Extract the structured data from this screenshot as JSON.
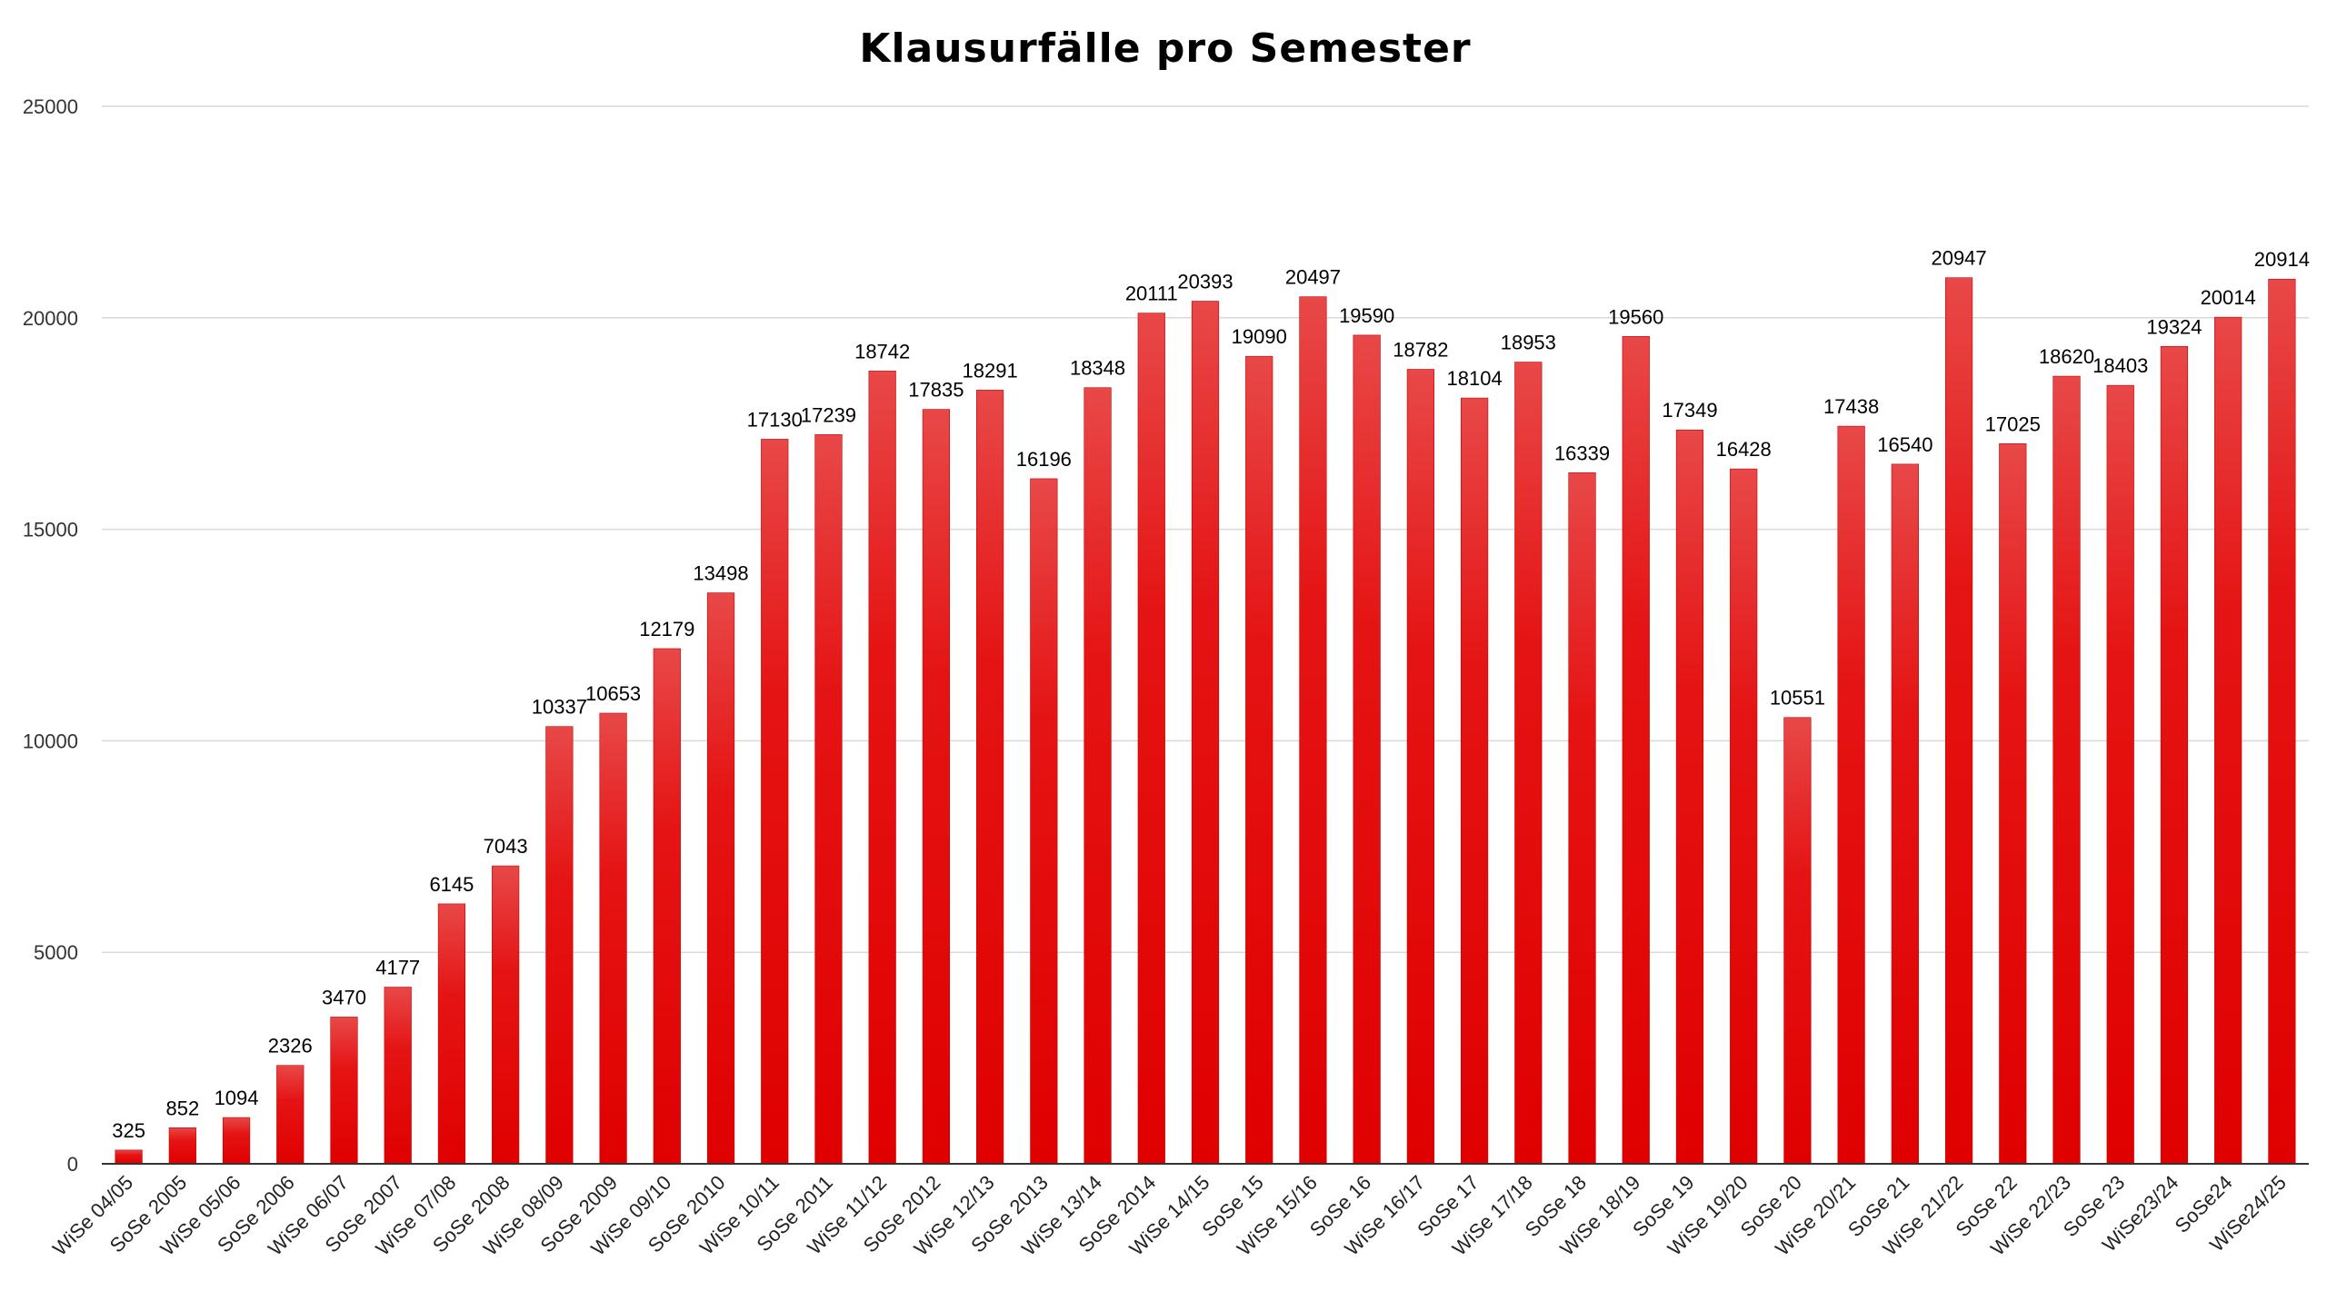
{
  "chart_data": {
    "type": "bar",
    "title": "Klausurfälle pro Semester",
    "xlabel": "",
    "ylabel": "",
    "ylim": [
      0,
      25000
    ],
    "yticks": [
      0,
      5000,
      10000,
      15000,
      20000,
      25000
    ],
    "grid": true,
    "legend": "none",
    "bar_color": "#e60000",
    "categories": [
      "WiSe 04/05",
      "SoSe 2005",
      "WiSe 05/06",
      "SoSe 2006",
      "WiSe 06/07",
      "SoSe 2007",
      "WiSe 07/08",
      "SoSe 2008",
      "WiSe 08/09",
      "SoSe 2009",
      "WiSe 09/10",
      "SoSe 2010",
      "WiSe 10/11",
      "SoSe 2011",
      "WiSe 11/12",
      "SoSe 2012",
      "WiSe 12/13",
      "SoSe 2013",
      "WiSe 13/14",
      "SoSe 2014",
      "WiSe 14/15",
      "SoSe 15",
      "WiSe 15/16",
      "SoSe 16",
      "WiSe 16/17",
      "SoSe 17",
      "WiSe 17/18",
      "SoSe 18",
      "WiSe 18/19",
      "SoSe 19",
      "WiSe 19/20",
      "SoSe 20",
      "WiSe 20/21",
      "SoSe 21",
      "WiSe 21/22",
      "SoSe 22",
      "WiSe 22/23",
      "SoSe 23",
      "WiSe23/24",
      "SoSe24",
      "WiSe24/25"
    ],
    "values": [
      325,
      852,
      1094,
      2326,
      3470,
      4177,
      6145,
      7043,
      10337,
      10653,
      12179,
      13498,
      17130,
      17239,
      18742,
      17835,
      18291,
      16196,
      18348,
      20111,
      20393,
      19090,
      20497,
      19590,
      18782,
      18104,
      18953,
      16339,
      19560,
      17349,
      16428,
      10551,
      17438,
      16540,
      20947,
      17025,
      18620,
      18403,
      19324,
      20014,
      20914
    ]
  }
}
